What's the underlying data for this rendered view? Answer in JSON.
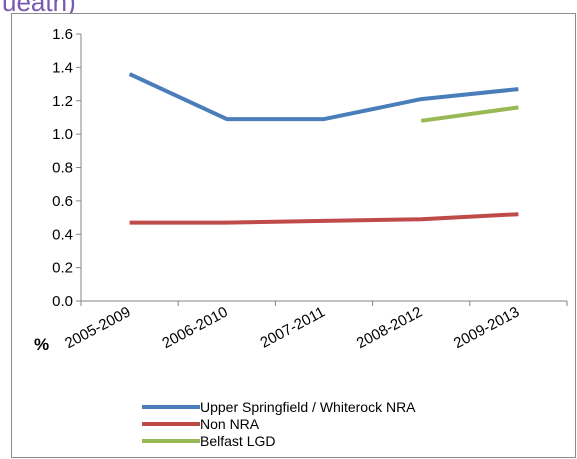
{
  "header": {
    "fragment": "ueath)"
  },
  "chart_data": {
    "type": "line",
    "categories": [
      "2005-2009",
      "2006-2010",
      "2007-2011",
      "2008-2012",
      "2009-2013"
    ],
    "ylabel": "%",
    "ylim": [
      0,
      1.6
    ],
    "yticks": [
      "0.0",
      "0.2",
      "0.4",
      "0.6",
      "0.8",
      "1.0",
      "1.2",
      "1.4",
      "1.6"
    ],
    "grid": false,
    "legend_position": "bottom",
    "series": [
      {
        "name": "Upper Springfield / Whiterock NRA",
        "color": "#4a7ebb",
        "values": [
          1.36,
          1.09,
          1.09,
          1.21,
          1.27
        ]
      },
      {
        "name": "Non NRA",
        "color": "#be4b48",
        "values": [
          0.47,
          0.47,
          0.48,
          0.49,
          0.52
        ]
      },
      {
        "name": "Belfast LGD",
        "color": "#98b954",
        "values": [
          null,
          null,
          null,
          1.08,
          1.16
        ]
      }
    ]
  }
}
